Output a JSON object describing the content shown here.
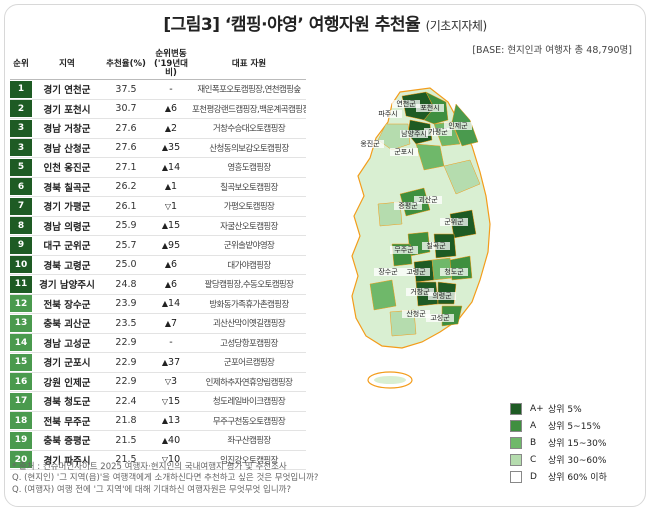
{
  "title": {
    "main": "[그림3] ‘캠핑·야영’ 여행자원 추천율",
    "sub": "(기초지자체)"
  },
  "base_note": "[BASE: 현지인과 여행자 총 48,790명]",
  "table": {
    "headers": {
      "rank": "순위",
      "region": "지역",
      "rate": "추천율(%)",
      "change": "순위변동 ('19년대비)",
      "site": "대표 자원"
    },
    "rows": [
      {
        "rank": "1",
        "region": "경기 연천군",
        "rate": "37.5",
        "arrow": "",
        "change": "-",
        "site": "재인폭포오토캠핑장,연천캠핑숲",
        "grade": "A+"
      },
      {
        "rank": "2",
        "region": "경기 포천시",
        "rate": "30.7",
        "arrow": "▲",
        "change": "6",
        "site": "포천평강랜드캠핑장,백운계곡캠핑장",
        "grade": "A+"
      },
      {
        "rank": "3",
        "region": "경남 거창군",
        "rate": "27.6",
        "arrow": "▲",
        "change": "2",
        "site": "거창수승대오토캠핑장",
        "grade": "A+"
      },
      {
        "rank": "3",
        "region": "경남 산청군",
        "rate": "27.6",
        "arrow": "▲",
        "change": "35",
        "site": "산청동의보감오토캠핑장",
        "grade": "A+"
      },
      {
        "rank": "5",
        "region": "인천 옹진군",
        "rate": "27.1",
        "arrow": "▲",
        "change": "14",
        "site": "영흥도캠핑장",
        "grade": "A+"
      },
      {
        "rank": "6",
        "region": "경북 칠곡군",
        "rate": "26.2",
        "arrow": "▲",
        "change": "1",
        "site": "칠곡보오토캠핑장",
        "grade": "A+"
      },
      {
        "rank": "7",
        "region": "경기 가평군",
        "rate": "26.1",
        "arrow": "▽",
        "change": "1",
        "site": "가평오토캠핑장",
        "grade": "A+"
      },
      {
        "rank": "8",
        "region": "경남 의령군",
        "rate": "25.9",
        "arrow": "▲",
        "change": "15",
        "site": "자굴산오토캠핑장",
        "grade": "A+"
      },
      {
        "rank": "9",
        "region": "대구 군위군",
        "rate": "25.7",
        "arrow": "▲",
        "change": "95",
        "site": "군위솔밭야영장",
        "grade": "A+"
      },
      {
        "rank": "10",
        "region": "경북 고령군",
        "rate": "25.0",
        "arrow": "▲",
        "change": "6",
        "site": "대가야캠핑장",
        "grade": "A+"
      },
      {
        "rank": "11",
        "region": "경기 남양주시",
        "rate": "24.8",
        "arrow": "▲",
        "change": "6",
        "site": "팔당캠핑장,수동오토캠핑장",
        "grade": "A+"
      },
      {
        "rank": "12",
        "region": "전북 장수군",
        "rate": "23.9",
        "arrow": "▲",
        "change": "14",
        "site": "방화동가족휴가촌캠핑장",
        "grade": "A"
      },
      {
        "rank": "13",
        "region": "충북 괴산군",
        "rate": "23.5",
        "arrow": "▲",
        "change": "7",
        "site": "괴산산막이옛길캠핑장",
        "grade": "A"
      },
      {
        "rank": "14",
        "region": "경남 고성군",
        "rate": "22.9",
        "arrow": "",
        "change": "-",
        "site": "고성당항포캠핑장",
        "grade": "A"
      },
      {
        "rank": "15",
        "region": "경기 군포시",
        "rate": "22.9",
        "arrow": "▲",
        "change": "37",
        "site": "군포어르캠핑장",
        "grade": "A"
      },
      {
        "rank": "16",
        "region": "강원 인제군",
        "rate": "22.9",
        "arrow": "▽",
        "change": "3",
        "site": "인제하추자연휴양림캠핑장",
        "grade": "A"
      },
      {
        "rank": "17",
        "region": "경북 청도군",
        "rate": "22.4",
        "arrow": "▽",
        "change": "15",
        "site": "청도레일바이크캠핑장",
        "grade": "A"
      },
      {
        "rank": "18",
        "region": "전북 무주군",
        "rate": "21.8",
        "arrow": "▲",
        "change": "13",
        "site": "무주구천동오토캠핑장",
        "grade": "A"
      },
      {
        "rank": "19",
        "region": "충북 증평군",
        "rate": "21.5",
        "arrow": "▲",
        "change": "40",
        "site": "좌구산캠핑장",
        "grade": "A"
      },
      {
        "rank": "20",
        "region": "경기 파주시",
        "rate": "21.5",
        "arrow": "▽",
        "change": "10",
        "site": "임진강오토캠핑장",
        "grade": "A"
      }
    ]
  },
  "notes": [
    "* 출처 : 컨슈머인사이트 2025 여행자·현지인의 국내여행지 평가 및 추천조사",
    "Q. (현지인) '그 지역(읍)'을 여행객에게 소개하신다면 추천하고 싶은 것은 무엇입니까?",
    "Q. (여행자) 여행 전에 '그 지역'에 대해 기대하신 여행자원은 무엇무엇 입니까?"
  ],
  "legend": [
    {
      "grade": "A+",
      "label": "상위 5%",
      "color": "#1e5b24"
    },
    {
      "grade": "A",
      "label": "상위 5~15%",
      "color": "#3f8f3f"
    },
    {
      "grade": "B",
      "label": "상위 15~30%",
      "color": "#6fb86a"
    },
    {
      "grade": "C",
      "label": "상위 30~60%",
      "color": "#b5dcae"
    },
    {
      "grade": "D",
      "label": "상위 60% 이하",
      "color": "#ffffff"
    }
  ],
  "rank_colors": {
    "top11": "#1e5b24",
    "rest": "#4a9a4e"
  },
  "map_labels": [
    "연천군",
    "포천시",
    "파주시",
    "가평군",
    "인제군",
    "남양주시",
    "군포시",
    "옹진군",
    "괴산군",
    "증평군",
    "군위군",
    "칠곡군",
    "무주군",
    "장수군",
    "고령군",
    "청도군",
    "거창군",
    "산청군",
    "의령군",
    "고성군"
  ],
  "chart_data": {
    "type": "table",
    "title": "[그림3] ‘캠핑·야영’ 여행자원 추천율 (기초지자체)",
    "columns": [
      "순위",
      "지역",
      "추천율(%)",
      "순위변동 ('19년대비)",
      "대표 자원"
    ],
    "categories": [
      "경기 연천군",
      "경기 포천시",
      "경남 거창군",
      "경남 산청군",
      "인천 옹진군",
      "경북 칠곡군",
      "경기 가평군",
      "경남 의령군",
      "대구 군위군",
      "경북 고령군",
      "경기 남양주시",
      "전북 장수군",
      "충북 괴산군",
      "경남 고성군",
      "경기 군포시",
      "강원 인제군",
      "경북 청도군",
      "전북 무주군",
      "충북 증평군",
      "경기 파주시"
    ],
    "values": [
      37.5,
      30.7,
      27.6,
      27.6,
      27.1,
      26.2,
      26.1,
      25.9,
      25.7,
      25.0,
      24.8,
      23.9,
      23.5,
      22.9,
      22.9,
      22.9,
      22.4,
      21.8,
      21.5,
      21.5
    ]
  }
}
